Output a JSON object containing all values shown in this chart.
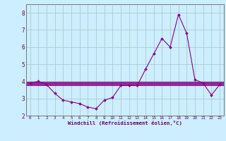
{
  "x": [
    0,
    1,
    2,
    3,
    4,
    5,
    6,
    7,
    8,
    9,
    10,
    11,
    12,
    13,
    14,
    15,
    16,
    17,
    18,
    19,
    20,
    21,
    22,
    23
  ],
  "y_main": [
    3.9,
    4.0,
    3.8,
    3.3,
    2.9,
    2.8,
    2.7,
    2.5,
    2.4,
    2.9,
    3.05,
    3.75,
    3.75,
    3.75,
    4.7,
    5.6,
    6.5,
    6.0,
    7.9,
    6.8,
    4.1,
    3.9,
    3.2,
    3.8
  ],
  "y_avg1": 3.95,
  "y_avg2": 3.85,
  "y_avg3": 3.75,
  "line_color": "#880088",
  "bg_color": "#cceeff",
  "grid_color": "#aacccc",
  "axis_color": "#660066",
  "xlabel": "Windchill (Refroidissement éolien,°C)",
  "ylim": [
    2.0,
    8.5
  ],
  "xlim": [
    -0.5,
    23.5
  ],
  "yticks": [
    2,
    3,
    4,
    5,
    6,
    7,
    8
  ],
  "xticks": [
    0,
    1,
    2,
    3,
    4,
    5,
    6,
    7,
    8,
    9,
    10,
    11,
    12,
    13,
    14,
    15,
    16,
    17,
    18,
    19,
    20,
    21,
    22,
    23
  ]
}
